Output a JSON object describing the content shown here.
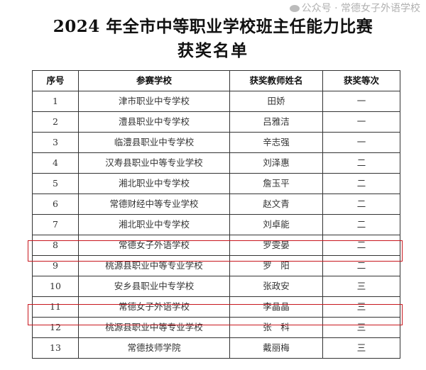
{
  "title_line1": "2024 年全市中等职业学校班主任能力比赛",
  "title_line2": "获奖名单",
  "table": {
    "headers": [
      "序号",
      "参赛学校",
      "获奖教师姓名",
      "获奖等次"
    ],
    "rows": [
      [
        "1",
        "津市职业中专学校",
        "田娇",
        "一"
      ],
      [
        "2",
        "澧县职业中专学校",
        "吕雅洁",
        "一"
      ],
      [
        "3",
        "临澧县职业中专学校",
        "辛志强",
        "一"
      ],
      [
        "4",
        "汉寿县职业中等专业学校",
        "刘泽惠",
        "二"
      ],
      [
        "5",
        "湘北职业中专学校",
        "詹玉平",
        "二"
      ],
      [
        "6",
        "常德财经中等专业学校",
        "赵文青",
        "二"
      ],
      [
        "7",
        "湘北职业中专学校",
        "刘卓能",
        "二"
      ],
      [
        "8",
        "常德女子外语学校",
        "罗雯晏",
        "二"
      ],
      [
        "9",
        "桃源县职业中等专业学校",
        "罗　阳",
        "二"
      ],
      [
        "10",
        "安乡县职业中专学校",
        "张政安",
        "三"
      ],
      [
        "11",
        "常德女子外语学校",
        "李晶晶",
        "三"
      ],
      [
        "12",
        "桃源县职业中等专业学校",
        "张　科",
        "三"
      ],
      [
        "13",
        "常德技师学院",
        "戴丽梅",
        "三"
      ]
    ],
    "highlighted_rows": [
      "8",
      "11"
    ],
    "highlight_color": "#c8171e"
  },
  "watermark": "公众号 · 常德女子外语学校"
}
